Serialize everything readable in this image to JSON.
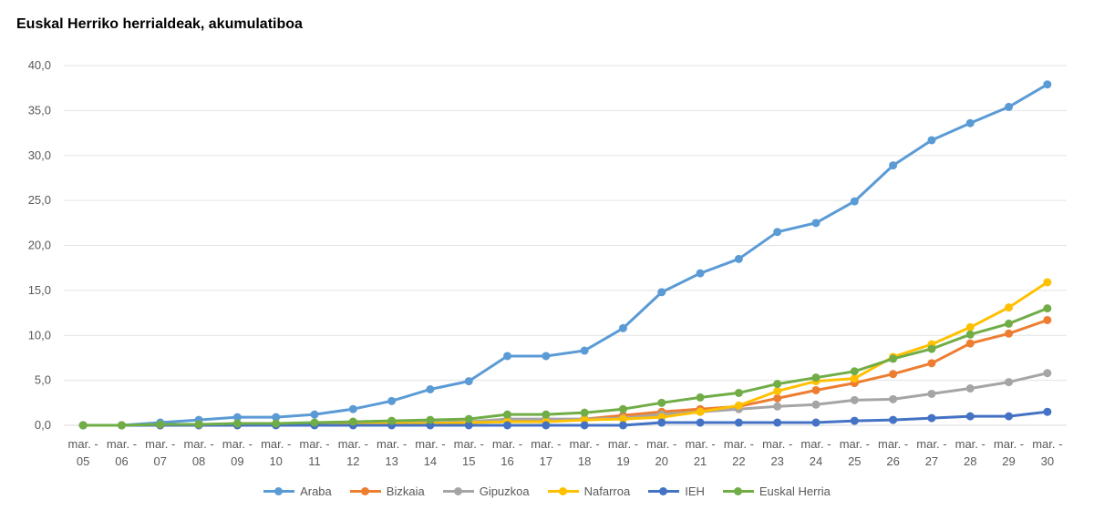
{
  "chart_data": {
    "type": "line",
    "title": "Euskal Herriko herrialdeak, akumulatiboa",
    "categories": [
      "mar. -|05",
      "mar. -|06",
      "mar. -|07",
      "mar. -|08",
      "mar. -|09",
      "mar. -|10",
      "mar. -|11",
      "mar. -|12",
      "mar. -|13",
      "mar. -|14",
      "mar. -|15",
      "mar. -|16",
      "mar. -|17",
      "mar. -|18",
      "mar. -|19",
      "mar. -|20",
      "mar. -|21",
      "mar. -|22",
      "mar. -|23",
      "mar. -|24",
      "mar. -|25",
      "mar. -|26",
      "mar. -|27",
      "mar. -|28",
      "mar. -|29",
      "mar. -|30"
    ],
    "yticks": [
      "0,0",
      "5,0",
      "10,0",
      "15,0",
      "20,0",
      "25,0",
      "30,0",
      "35,0",
      "40,0"
    ],
    "ylim": [
      0,
      40
    ],
    "grid": true,
    "legend_position": "bottom",
    "series": [
      {
        "name": "Araba",
        "color": "#5b9bd5",
        "values": [
          0.0,
          0.0,
          0.3,
          0.6,
          0.9,
          0.9,
          1.2,
          1.8,
          2.7,
          4.0,
          4.9,
          7.7,
          7.7,
          8.3,
          10.8,
          14.8,
          16.9,
          18.5,
          21.5,
          22.5,
          24.9,
          28.9,
          31.7,
          33.6,
          35.4,
          37.9
        ]
      },
      {
        "name": "Bizkaia",
        "color": "#ed7d31",
        "values": [
          0.0,
          0.0,
          0.0,
          0.1,
          0.1,
          0.1,
          0.2,
          0.2,
          0.3,
          0.3,
          0.3,
          0.5,
          0.5,
          0.7,
          1.1,
          1.5,
          1.8,
          2.1,
          3.0,
          3.9,
          4.7,
          5.7,
          6.9,
          9.1,
          10.2,
          11.7
        ]
      },
      {
        "name": "Gipuzkoa",
        "color": "#a5a5a5",
        "values": [
          0.0,
          0.0,
          0.0,
          0.1,
          0.1,
          0.1,
          0.2,
          0.3,
          0.3,
          0.3,
          0.4,
          0.7,
          0.7,
          0.7,
          0.8,
          1.2,
          1.5,
          1.8,
          2.1,
          2.3,
          2.8,
          2.9,
          3.5,
          4.1,
          4.8,
          5.8
        ]
      },
      {
        "name": "Nafarroa",
        "color": "#ffc000",
        "values": [
          0.0,
          0.0,
          0.0,
          0.0,
          0.0,
          0.1,
          0.1,
          0.2,
          0.2,
          0.2,
          0.3,
          0.4,
          0.4,
          0.6,
          0.7,
          0.9,
          1.5,
          2.2,
          3.8,
          4.9,
          5.2,
          7.6,
          9.0,
          10.9,
          13.1,
          15.9
        ]
      },
      {
        "name": "IEH",
        "color": "#4472c4",
        "values": [
          0.0,
          0.0,
          0.0,
          0.0,
          0.0,
          0.0,
          0.0,
          0.0,
          0.0,
          0.0,
          0.0,
          0.0,
          0.0,
          0.0,
          0.0,
          0.3,
          0.3,
          0.3,
          0.3,
          0.3,
          0.5,
          0.6,
          0.8,
          1.0,
          1.0,
          1.5
        ]
      },
      {
        "name": "Euskal Herria",
        "color": "#70ad47",
        "values": [
          0.0,
          0.0,
          0.1,
          0.1,
          0.2,
          0.2,
          0.3,
          0.4,
          0.5,
          0.6,
          0.7,
          1.2,
          1.2,
          1.4,
          1.8,
          2.5,
          3.1,
          3.6,
          4.6,
          5.3,
          6.0,
          7.4,
          8.5,
          10.1,
          11.3,
          13.0
        ]
      }
    ]
  }
}
